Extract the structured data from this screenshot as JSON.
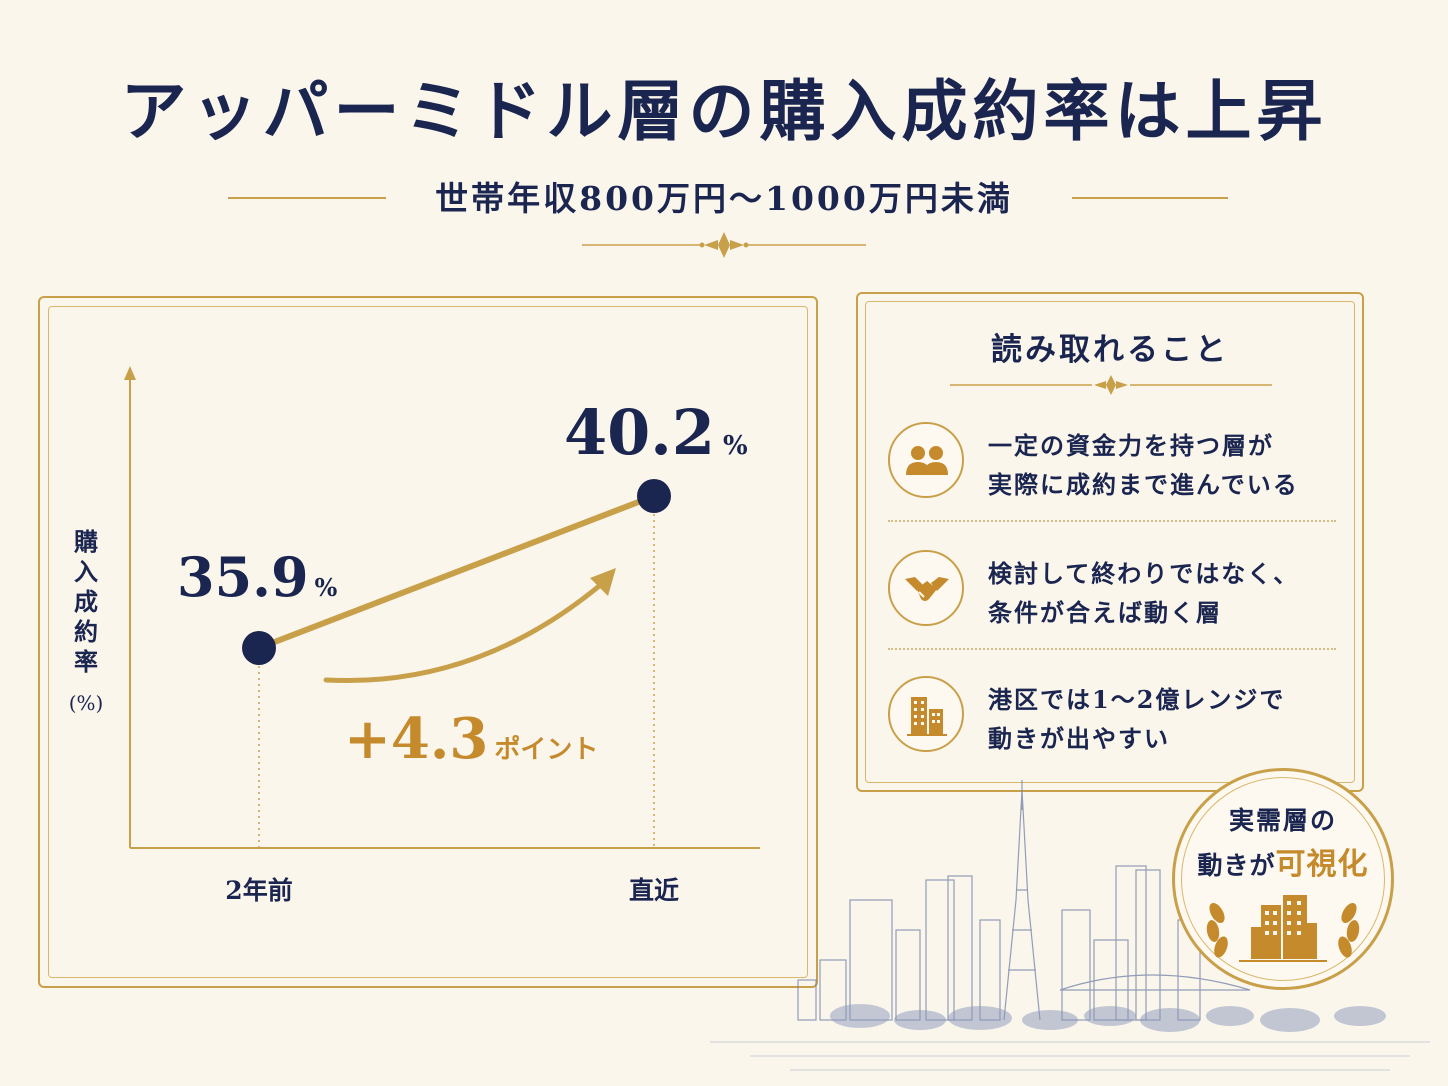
{
  "header": {
    "title": "アッパーミドル層の購入成約率は上昇",
    "subtitle": "世帯年収800万円～1000万円未満"
  },
  "chart_data": {
    "type": "line",
    "categories": [
      "2年前",
      "直近"
    ],
    "values": [
      35.9,
      40.2
    ],
    "value_labels": [
      "35.9",
      "40.2"
    ],
    "unit": "%",
    "ylabel": "購入成約率(%)",
    "annotation": {
      "value": "+4.3",
      "suffix": "ポイント"
    },
    "colors": {
      "line": "#c9a04a",
      "point": "#1a2550",
      "annotation": "#c48a2c"
    }
  },
  "info_panel": {
    "title": "読み取れること",
    "items": [
      {
        "icon": "people-icon",
        "line1": "一定の資金力を持つ層が",
        "line2": "実際に成約まで進んでいる"
      },
      {
        "icon": "handshake-icon",
        "line1": "検討して終わりではなく、",
        "line2": "条件が合えば動く層"
      },
      {
        "icon": "building-icon",
        "line1": "港区では1～2億レンジで",
        "line2": "動きが出やすい"
      }
    ]
  },
  "badge": {
    "line1": "実需層の",
    "line2_prefix": "動きが",
    "line2_highlight": "可視化"
  },
  "colors": {
    "navy": "#1a2550",
    "gold": "#c9a04a",
    "background": "#fbf6ec"
  }
}
